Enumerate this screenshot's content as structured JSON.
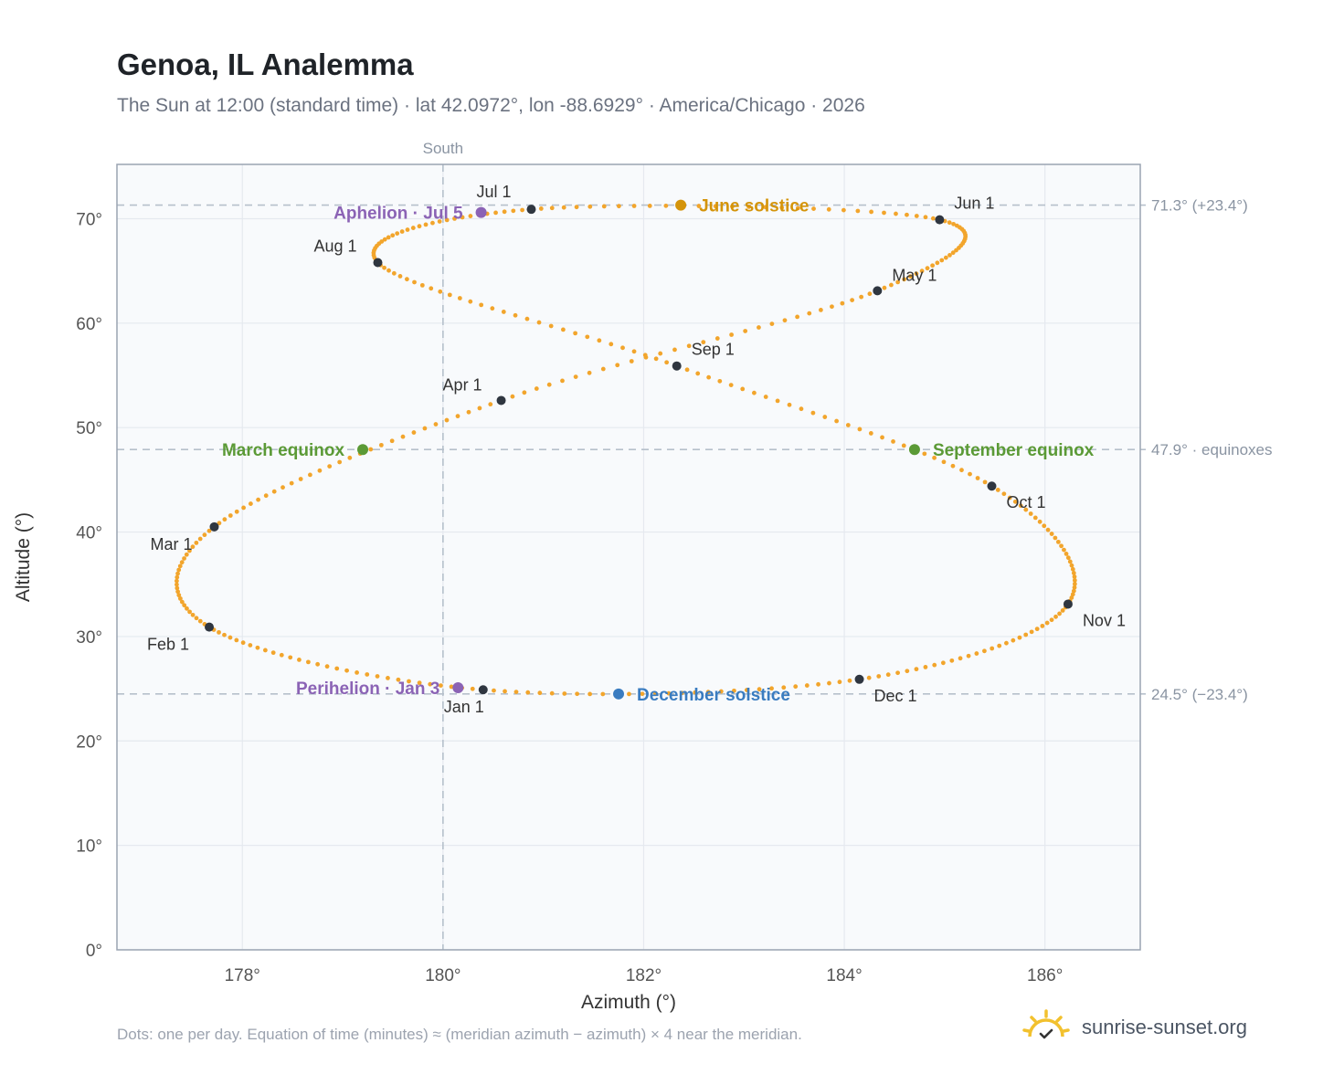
{
  "header": {
    "title": "Genoa, IL Analemma",
    "subtitle": "The Sun at 12:00 (standard time) · lat 42.0972°, lon -88.6929° · America/Chicago · 2026"
  },
  "footer": {
    "note": "Dots: one per day. Equation of time (minutes) ≈ (meridian azimuth − azimuth) × 4 near the meridian.",
    "brand": "sunrise-sunset.org",
    "brand_icon": "sun-check-icon"
  },
  "chart_data": {
    "type": "scatter",
    "xlabel": "Azimuth (°)",
    "ylabel": "Altitude (°)",
    "xlim": [
      176.75,
      186.95
    ],
    "ylim": [
      0,
      75.2
    ],
    "xticks": [
      178,
      180,
      182,
      184,
      186
    ],
    "xtick_labels": [
      "178°",
      "180°",
      "182°",
      "184°",
      "186°"
    ],
    "yticks": [
      0,
      10,
      20,
      30,
      40,
      50,
      60,
      70
    ],
    "ytick_labels": [
      "0°",
      "10°",
      "20°",
      "30°",
      "40°",
      "50°",
      "60°",
      "70°"
    ],
    "grid": true,
    "meridian": {
      "azimuth": 180,
      "label": "South"
    },
    "reference_lines": [
      {
        "altitude": 71.3,
        "label": "71.3° (+23.4°)"
      },
      {
        "altitude": 47.9,
        "label": "47.9° · equinoxes"
      },
      {
        "altitude": 24.5,
        "label": "24.5° (−23.4°)"
      }
    ],
    "curve_color": "#f2a52c",
    "month_markers": [
      {
        "label": "Jan 1",
        "az": 180.4,
        "alt": 24.9
      },
      {
        "label": "Feb 1",
        "az": 177.67,
        "alt": 30.9
      },
      {
        "label": "Mar 1",
        "az": 177.72,
        "alt": 40.5
      },
      {
        "label": "Apr 1",
        "az": 180.58,
        "alt": 52.6
      },
      {
        "label": "May 1",
        "az": 184.33,
        "alt": 63.1
      },
      {
        "label": "Jun 1",
        "az": 184.95,
        "alt": 69.9
      },
      {
        "label": "Jul 1",
        "az": 180.88,
        "alt": 70.9
      },
      {
        "label": "Aug 1",
        "az": 179.35,
        "alt": 65.8
      },
      {
        "label": "Sep 1",
        "az": 182.33,
        "alt": 55.9
      },
      {
        "label": "Oct 1",
        "az": 185.47,
        "alt": 44.4
      },
      {
        "label": "Nov 1",
        "az": 186.23,
        "alt": 33.1
      },
      {
        "label": "Dec 1",
        "az": 184.15,
        "alt": 25.9
      }
    ],
    "events": [
      {
        "label": "June solstice",
        "az": 182.37,
        "alt": 71.3,
        "color": "#d4940a"
      },
      {
        "label": "March equinox",
        "az": 179.2,
        "alt": 47.9,
        "color": "#5b9a36"
      },
      {
        "label": "September equinox",
        "az": 184.7,
        "alt": 47.9,
        "color": "#5b9a36"
      },
      {
        "label": "December solstice",
        "az": 181.75,
        "alt": 24.5,
        "color": "#3a7cc0"
      },
      {
        "label": "Aphelion · Jul 5",
        "az": 180.38,
        "alt": 70.6,
        "color": "#8b63b5"
      },
      {
        "label": "Perihelion · Jan 3",
        "az": 180.15,
        "alt": 25.1,
        "color": "#8b63b5"
      }
    ]
  }
}
